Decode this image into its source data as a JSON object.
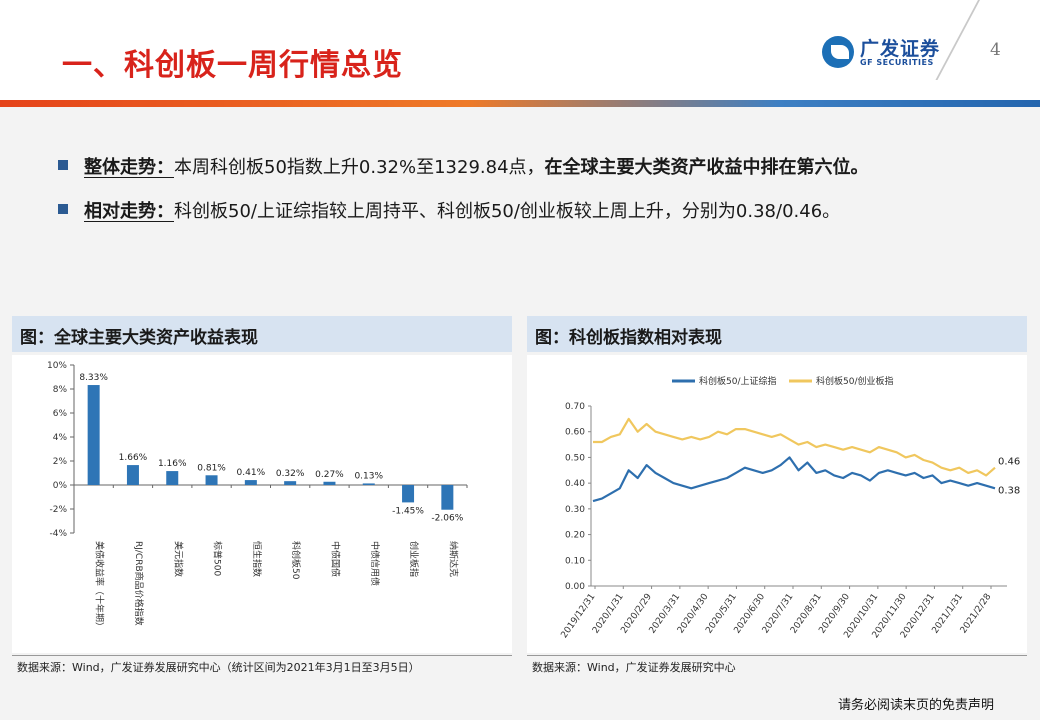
{
  "header": {
    "title": "一、科创板一周行情总览",
    "logo_cn": "广发证券",
    "logo_en": "GF SECURITIES",
    "page_number": "4"
  },
  "bullets": [
    {
      "head": "整体走势：",
      "text": "本周科创板50指数上升0.32%至1329.84点，",
      "strong": "在全球主要大类资产收益中排在第六位。"
    },
    {
      "head": "相对走势：",
      "text": "科创板50/上证综指较上周持平、科创板50/创业板较上周上升，分别为0.38/0.46。",
      "strong": ""
    }
  ],
  "panels": {
    "left_title": "图：全球主要大类资产收益表现",
    "right_title": "图：科创板指数相对表现",
    "left_source": "数据来源：Wind，广发证券发展研究中心（统计区间为2021年3月1日至3月5日）",
    "right_source": "数据来源：Wind，广发证券发展研究中心"
  },
  "footer": {
    "disclaimer": "请务必阅读末页的免责声明"
  },
  "colors": {
    "title_red": "#d8231b",
    "bar_blue": "#2e75b6",
    "line_blue": "#2e6fae",
    "line_gold": "#f0c75e"
  },
  "chart_data": [
    {
      "type": "bar",
      "title": "图：全球主要大类资产收益表现",
      "categories": [
        "美债收益率（十年期）",
        "RJ/CRB商品价格指数",
        "美元指数",
        "标普500",
        "恒生指数",
        "科创板50",
        "中债国债",
        "中债信用债",
        "创业板指",
        "纳斯达克"
      ],
      "values": [
        8.33,
        1.66,
        1.16,
        0.81,
        0.41,
        0.32,
        0.27,
        0.13,
        -1.45,
        -2.06
      ],
      "labels": [
        "8.33%",
        "1.66%",
        "1.16%",
        "0.81%",
        "0.41%",
        "0.32%",
        "0.27%",
        "0.13%",
        "-1.45%",
        "-2.06%"
      ],
      "ylim": [
        -4,
        10
      ],
      "yticks": [
        "10%",
        "8%",
        "6%",
        "4%",
        "2%",
        "0%",
        "-2%",
        "-4%"
      ],
      "ytick_values": [
        10,
        8,
        6,
        4,
        2,
        0,
        -2,
        -4
      ]
    },
    {
      "type": "line",
      "title": "图：科创板指数相对表现",
      "ylim": [
        0,
        0.7
      ],
      "yticks": [
        "0.70",
        "0.60",
        "0.50",
        "0.40",
        "0.30",
        "0.20",
        "0.10",
        "0.00"
      ],
      "ytick_values": [
        0.7,
        0.6,
        0.5,
        0.4,
        0.3,
        0.2,
        0.1,
        0.0
      ],
      "xticks": [
        "2019/12/31",
        "2020/1/31",
        "2020/2/29",
        "2020/3/31",
        "2020/4/30",
        "2020/5/31",
        "2020/6/30",
        "2020/7/31",
        "2020/8/31",
        "2020/9/30",
        "2020/10/31",
        "2020/11/30",
        "2020/12/31",
        "2021/1/31",
        "2021/2/28"
      ],
      "series": [
        {
          "name": "科创板50/上证综指",
          "end_label": "0.38",
          "values": [
            0.33,
            0.34,
            0.36,
            0.38,
            0.45,
            0.42,
            0.47,
            0.44,
            0.42,
            0.4,
            0.39,
            0.38,
            0.39,
            0.4,
            0.41,
            0.42,
            0.44,
            0.46,
            0.45,
            0.44,
            0.45,
            0.47,
            0.5,
            0.45,
            0.48,
            0.44,
            0.45,
            0.43,
            0.42,
            0.44,
            0.43,
            0.41,
            0.44,
            0.45,
            0.44,
            0.43,
            0.44,
            0.42,
            0.43,
            0.4,
            0.41,
            0.4,
            0.39,
            0.4,
            0.39,
            0.38
          ]
        },
        {
          "name": "科创板50/创业板指",
          "end_label": "0.46",
          "values": [
            0.56,
            0.56,
            0.58,
            0.59,
            0.65,
            0.6,
            0.63,
            0.6,
            0.59,
            0.58,
            0.57,
            0.58,
            0.57,
            0.58,
            0.6,
            0.59,
            0.61,
            0.61,
            0.6,
            0.59,
            0.58,
            0.59,
            0.57,
            0.55,
            0.56,
            0.54,
            0.55,
            0.54,
            0.53,
            0.54,
            0.53,
            0.52,
            0.54,
            0.53,
            0.52,
            0.5,
            0.51,
            0.49,
            0.48,
            0.46,
            0.45,
            0.46,
            0.44,
            0.45,
            0.43,
            0.46
          ]
        }
      ]
    }
  ]
}
